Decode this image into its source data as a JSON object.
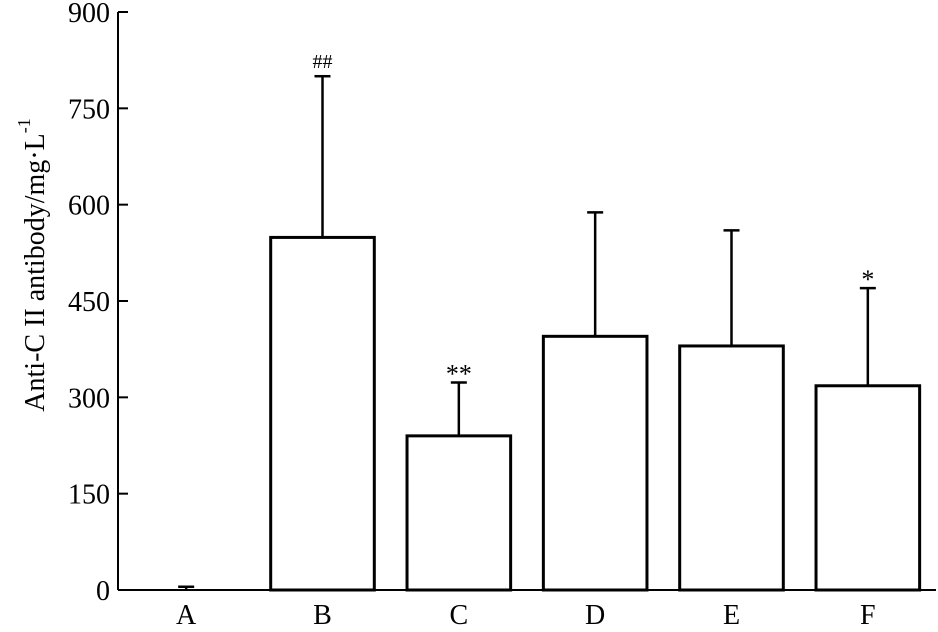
{
  "chart_data": {
    "type": "bar",
    "title": "",
    "xlabel": "",
    "ylabel": "Anti-C II antibody/mg·L",
    "ylabel_superscript": "-1",
    "ylim": [
      0,
      900
    ],
    "yticks": [
      0,
      150,
      300,
      450,
      600,
      750,
      900
    ],
    "categories": [
      "A",
      "B",
      "C",
      "D",
      "E",
      "F"
    ],
    "values": [
      0,
      549,
      240,
      395,
      380,
      318
    ],
    "error_upper": [
      5,
      800,
      323,
      588,
      560,
      470
    ],
    "annotations": [
      "",
      "##",
      "**",
      "",
      "",
      "*"
    ],
    "bar_fill": "#ffffff",
    "bar_stroke": "#000000",
    "grid": false,
    "legend": "none"
  }
}
